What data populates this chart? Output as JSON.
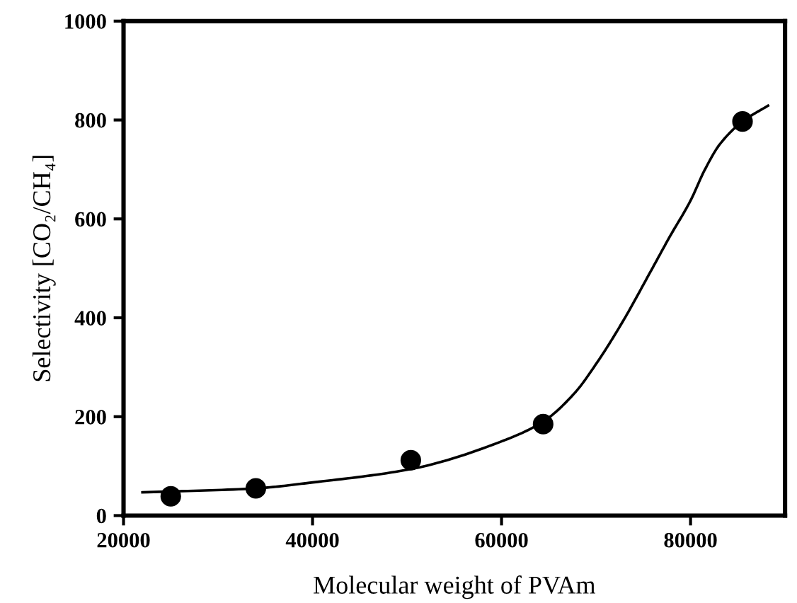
{
  "chart_data": {
    "type": "scatter",
    "xlabel": "Molecular weight of PVAm",
    "ylabel": "Selectivity [CO₂/CH₄]",
    "xlim": [
      20000,
      90000
    ],
    "xticks": [
      20000,
      40000,
      60000,
      80000
    ],
    "ylim": [
      0,
      1000
    ],
    "yticks": [
      0,
      200,
      400,
      600,
      800,
      1000
    ],
    "grid": false,
    "legend": false,
    "series": [
      {
        "color": "#000000",
        "marker": "circle",
        "x": [
          25000,
          34000,
          50400,
          64400,
          85500
        ],
        "values": [
          39,
          55,
          112,
          185,
          797
        ]
      },
      {
        "type": "line",
        "color": "#000000",
        "marker": "none",
        "line_style": "solid",
        "x": [
          22000,
          34000,
          40000,
          50400,
          60000,
          64400,
          67700,
          70300,
          73000,
          75700,
          77800,
          80000,
          81500,
          83100,
          85500,
          88200
        ],
        "values": [
          47,
          55,
          67,
          94,
          150,
          190,
          247,
          315,
          398,
          491,
          564,
          637,
          699,
          751,
          797,
          829
        ]
      }
    ]
  }
}
